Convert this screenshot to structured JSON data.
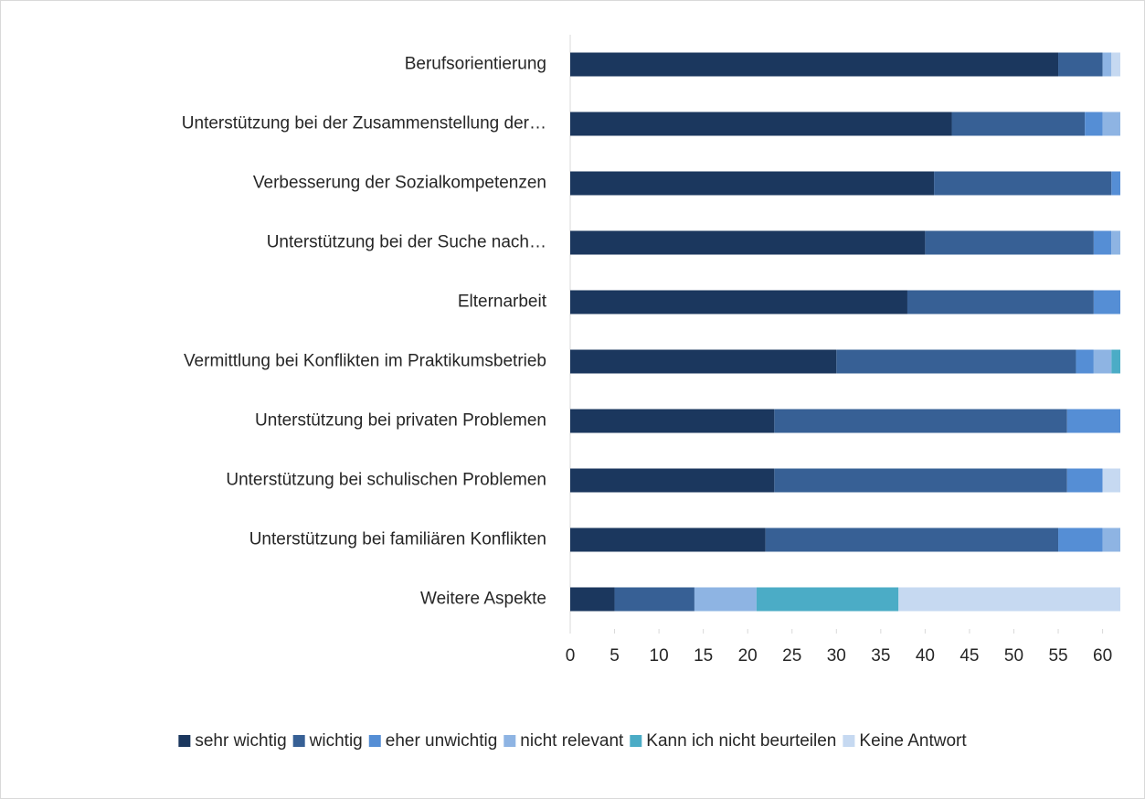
{
  "chart_data": {
    "type": "stacked_bar_horizontal",
    "categories": [
      "Berufsorientierung",
      "Unterstützung bei der Zusammenstellung der…",
      "Verbesserung der Sozialkompetenzen",
      "Unterstützung bei der Suche nach…",
      "Elternarbeit",
      "Vermittlung bei Konflikten im Praktikumsbetrieb",
      "Unterstützung bei privaten Problemen",
      "Unterstützung bei schulischen Problemen",
      "Unterstützung bei familiären Konflikten",
      "Weitere Aspekte"
    ],
    "series": [
      {
        "name": "sehr wichtig",
        "color": "#1b375e",
        "values": [
          55,
          43,
          41,
          40,
          38,
          30,
          23,
          23,
          22,
          5
        ]
      },
      {
        "name": "wichtig",
        "color": "#376095",
        "values": [
          5,
          15,
          20,
          19,
          21,
          27,
          33,
          33,
          33,
          9
        ]
      },
      {
        "name": "eher unwichtig",
        "color": "#558ed5",
        "values": [
          0,
          2,
          1,
          2,
          3,
          2,
          6,
          4,
          5,
          0
        ]
      },
      {
        "name": "nicht relevant",
        "color": "#8eb4e3",
        "values": [
          1,
          2,
          0,
          1,
          0,
          2,
          0,
          0,
          2,
          7
        ]
      },
      {
        "name": "Kann ich nicht beurteilen",
        "color": "#4bacc6",
        "values": [
          0,
          0,
          0,
          0,
          0,
          1,
          0,
          0,
          0,
          16
        ]
      },
      {
        "name": "Keine Antwort",
        "color": "#c6d9f1",
        "values": [
          1,
          0,
          0,
          0,
          0,
          0,
          0,
          2,
          0,
          25
        ]
      }
    ],
    "xlim": [
      0,
      62
    ],
    "xticks": [
      0,
      5,
      10,
      15,
      20,
      25,
      30,
      35,
      40,
      45,
      50,
      55,
      60
    ],
    "legend": "bottom"
  }
}
